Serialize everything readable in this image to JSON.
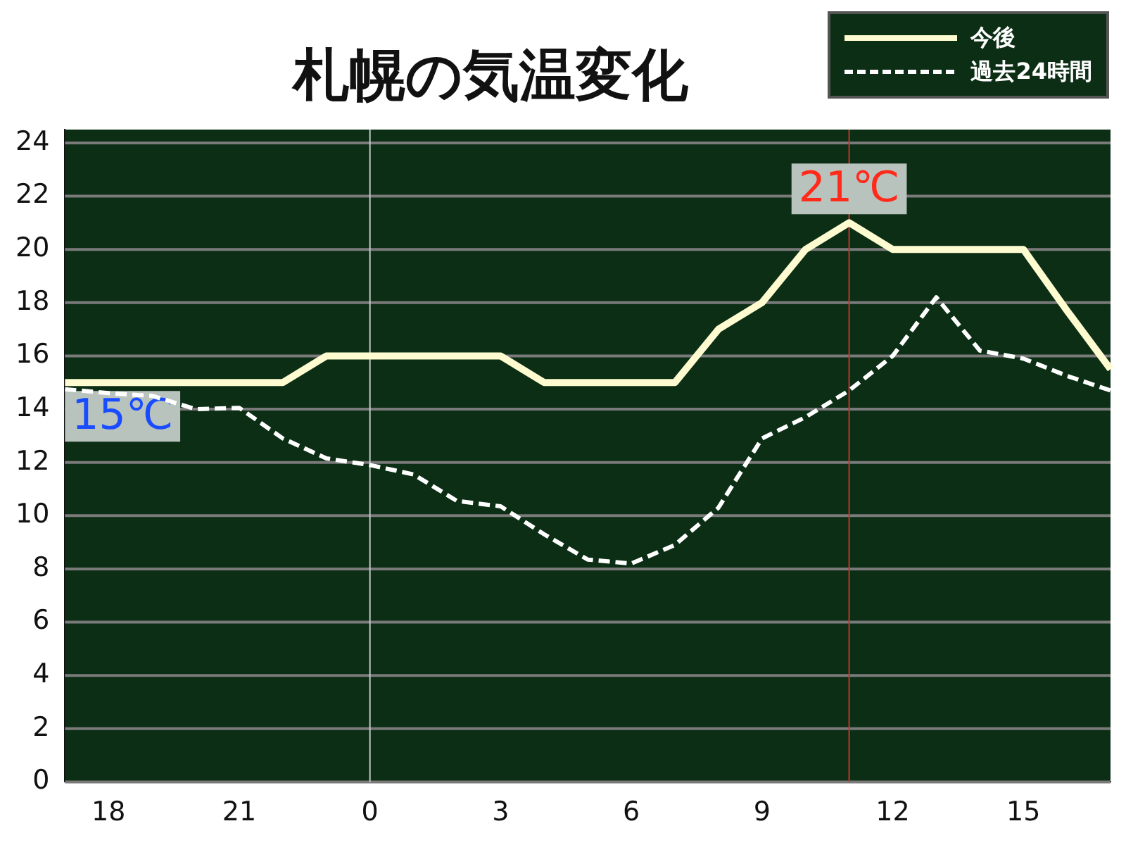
{
  "chart_data": {
    "type": "line",
    "title": "札幌の気温変化",
    "legend": "top right",
    "grid": "y",
    "marker": "none",
    "categories": [
      null,
      "18",
      null,
      null,
      "21",
      null,
      null,
      "0",
      null,
      null,
      "3",
      null,
      null,
      "6",
      null,
      null,
      "9",
      null,
      null,
      "12",
      null,
      null,
      "15",
      null,
      null
    ],
    "ylim": [
      0,
      24.5
    ],
    "yticks": [
      0,
      2,
      4,
      6,
      8,
      10,
      12,
      14,
      16,
      18,
      20,
      22,
      24
    ],
    "series": [
      {
        "name": "今後",
        "color": "#fffbd0",
        "line_style": "solid",
        "values": [
          15,
          15,
          15,
          15,
          15,
          15,
          16,
          16,
          16,
          16,
          16,
          15,
          15,
          15,
          15,
          17,
          18,
          20,
          21,
          20,
          20,
          20,
          20,
          17.7,
          15.5
        ]
      },
      {
        "name": "過去24時間",
        "color": "#ffffff",
        "line_style": "dashed",
        "values": [
          14.75,
          14.6,
          14.5,
          14,
          14.05,
          12.9,
          12.15,
          11.9,
          11.55,
          10.55,
          10.35,
          9.3,
          8.35,
          8.2,
          8.9,
          10.3,
          12.9,
          13.7,
          14.7,
          16,
          18.2,
          16.2,
          15.9,
          15.25,
          14.7
        ]
      }
    ],
    "ref_lines": [
      {
        "axis": "x",
        "value": "0",
        "color": "#c8c8c8"
      }
    ],
    "annotations": [
      {
        "text": "21℃",
        "y": 21
      },
      {
        "text": "15℃",
        "y": 15
      }
    ]
  }
}
